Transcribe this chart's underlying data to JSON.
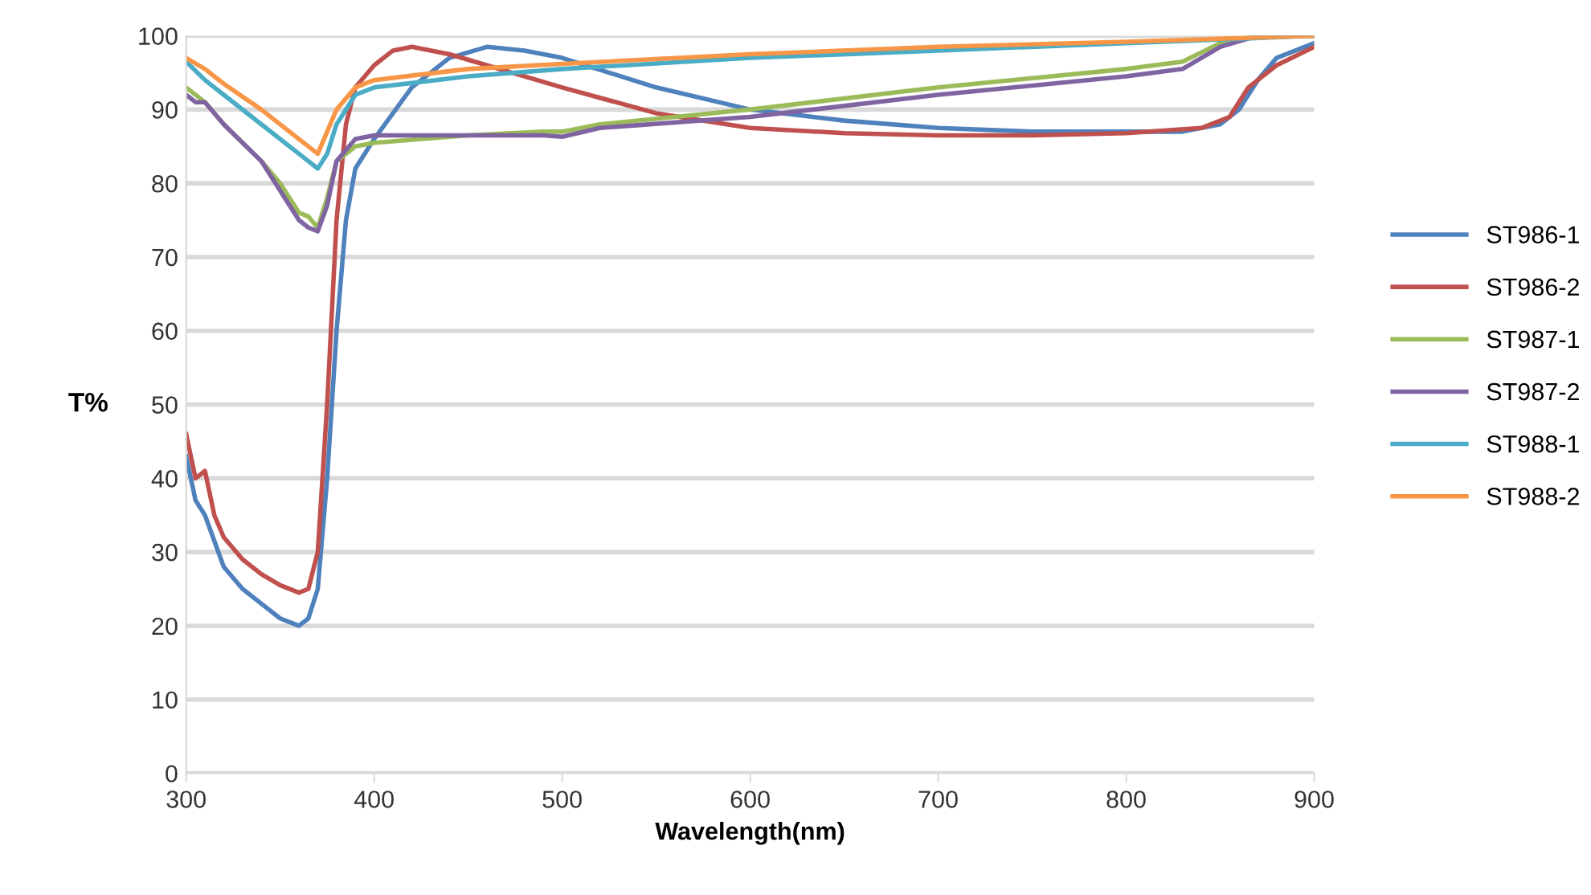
{
  "chart_data": {
    "type": "line",
    "xlabel": "Wavelength(nm)",
    "ylabel": "T%",
    "xlim": [
      300,
      900
    ],
    "xticks": [
      300,
      400,
      500,
      600,
      700,
      800,
      900
    ],
    "ylim": [
      0,
      100
    ],
    "yticks": [
      0,
      10,
      20,
      30,
      40,
      50,
      60,
      70,
      80,
      90,
      100
    ],
    "grid": "y",
    "legend": "right",
    "marker": "none",
    "line_style": "solid",
    "series": [
      {
        "name": "ST986-1",
        "color": "#4f81bd",
        "x": [
          300,
          305,
          310,
          320,
          330,
          340,
          350,
          360,
          365,
          370,
          375,
          380,
          385,
          390,
          400,
          420,
          440,
          460,
          480,
          500,
          550,
          600,
          650,
          700,
          750,
          800,
          830,
          850,
          860,
          870,
          880,
          900
        ],
        "values": [
          43,
          37,
          35,
          28,
          25,
          23,
          21,
          20,
          21,
          25,
          40,
          60,
          75,
          82,
          86,
          93,
          97,
          98.5,
          98,
          97,
          93,
          90,
          88.5,
          87.5,
          87,
          87,
          87,
          88,
          90,
          94,
          97,
          99
        ]
      },
      {
        "name": "ST986-2",
        "color": "#c0504d",
        "x": [
          300,
          305,
          310,
          315,
          320,
          330,
          340,
          350,
          360,
          365,
          370,
          375,
          380,
          385,
          390,
          400,
          410,
          420,
          440,
          460,
          500,
          550,
          600,
          650,
          700,
          750,
          800,
          840,
          855,
          865,
          880,
          900
        ],
        "values": [
          46,
          40,
          41,
          35,
          32,
          29,
          27,
          25.5,
          24.5,
          25,
          30,
          50,
          75,
          88,
          93,
          96,
          98,
          98.5,
          97.5,
          96,
          93,
          89.5,
          87.5,
          86.8,
          86.5,
          86.5,
          86.8,
          87.5,
          89,
          93,
          96,
          98.5
        ]
      },
      {
        "name": "ST987-1",
        "color": "#9bbb59",
        "x": [
          300,
          310,
          320,
          340,
          350,
          360,
          365,
          370,
          375,
          380,
          390,
          400,
          450,
          490,
          500,
          520,
          600,
          700,
          800,
          830,
          850,
          870,
          900
        ],
        "values": [
          93,
          91,
          88,
          83,
          80,
          76,
          75.5,
          74,
          78,
          83,
          85,
          85.5,
          86.5,
          87,
          87,
          88,
          90,
          93,
          95.5,
          96.5,
          99,
          100,
          100
        ]
      },
      {
        "name": "ST987-2",
        "color": "#8064a2",
        "x": [
          300,
          305,
          310,
          320,
          340,
          350,
          360,
          365,
          370,
          375,
          380,
          390,
          400,
          450,
          490,
          500,
          520,
          600,
          700,
          800,
          830,
          850,
          870,
          900
        ],
        "values": [
          92,
          91,
          91,
          88,
          83,
          79,
          75,
          74,
          73.5,
          77,
          83,
          86,
          86.5,
          86.5,
          86.5,
          86.3,
          87.5,
          89,
          92,
          94.5,
          95.5,
          98.5,
          100,
          100
        ]
      },
      {
        "name": "ST988-1",
        "color": "#4bacc6",
        "x": [
          300,
          310,
          320,
          340,
          360,
          370,
          375,
          380,
          390,
          400,
          450,
          500,
          600,
          700,
          800,
          850,
          900
        ],
        "values": [
          96.5,
          94,
          92,
          88,
          84,
          82,
          84,
          88,
          92,
          93,
          94.5,
          95.5,
          97,
          98,
          99,
          99.5,
          100
        ]
      },
      {
        "name": "ST988-2",
        "color": "#f79646",
        "x": [
          300,
          310,
          320,
          340,
          360,
          370,
          375,
          380,
          390,
          400,
          450,
          500,
          600,
          700,
          800,
          850,
          900
        ],
        "values": [
          97,
          95.5,
          93.5,
          90,
          86,
          84,
          87,
          90,
          93,
          94,
          95.5,
          96.2,
          97.5,
          98.5,
          99.2,
          99.6,
          100
        ]
      }
    ]
  }
}
